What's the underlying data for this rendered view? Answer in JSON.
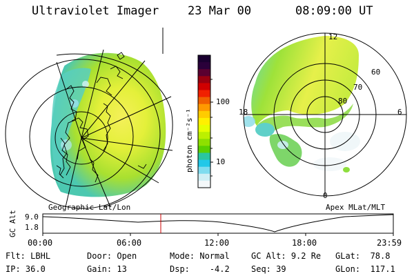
{
  "header": {
    "instrument": "Ultraviolet Imager",
    "date": "23 Mar 00",
    "time": "08:09:00 UT"
  },
  "colorbar": {
    "label": "photon cm⁻²s⁻¹",
    "ticks": [
      "100",
      "10"
    ],
    "colors": [
      "#1a0030",
      "#2a003a",
      "#5a0030",
      "#9a0010",
      "#d00000",
      "#f02000",
      "#f06000",
      "#ff9900",
      "#ffcc00",
      "#fff000",
      "#e6ff00",
      "#bcf000",
      "#8ee000",
      "#5ad000",
      "#2ac6a0",
      "#22c8e8",
      "#7fdcef",
      "#cfeff5",
      "#f4f8fa"
    ]
  },
  "geo_panel": {
    "label": "Geographic Lat/Lon"
  },
  "apex_panel": {
    "label": "Apex MLat/MLT",
    "mlt_labels": {
      "top": "12",
      "left": "18",
      "right": "6",
      "bottom": "0"
    },
    "lat_labels": [
      "60",
      "70",
      "80"
    ]
  },
  "altitude_plot": {
    "ylabel": "GC Alt",
    "yticks": [
      "9.0",
      "1.8"
    ],
    "xticks": [
      "00:00",
      "06:00",
      "12:00",
      "18:00",
      "23:59"
    ],
    "marker_color": "#cc0000"
  },
  "info_rows": [
    [
      {
        "k": "Flt:",
        "v": "LBHL"
      },
      {
        "k": "Door:",
        "v": "Open"
      },
      {
        "k": "Mode:",
        "v": "Normal"
      },
      {
        "k": "GC Alt:",
        "v": "9.2 Re"
      },
      {
        "k": "GLat:",
        "v": "78.8"
      }
    ],
    [
      {
        "k": "IP:",
        "v": "36.0"
      },
      {
        "k": "Gain:",
        "v": "13"
      },
      {
        "k": "Dsp:",
        "v": "-4.2"
      },
      {
        "k": "Seq:",
        "v": "39"
      },
      {
        "k": "GLon:",
        "v": "117.1"
      }
    ]
  ]
}
